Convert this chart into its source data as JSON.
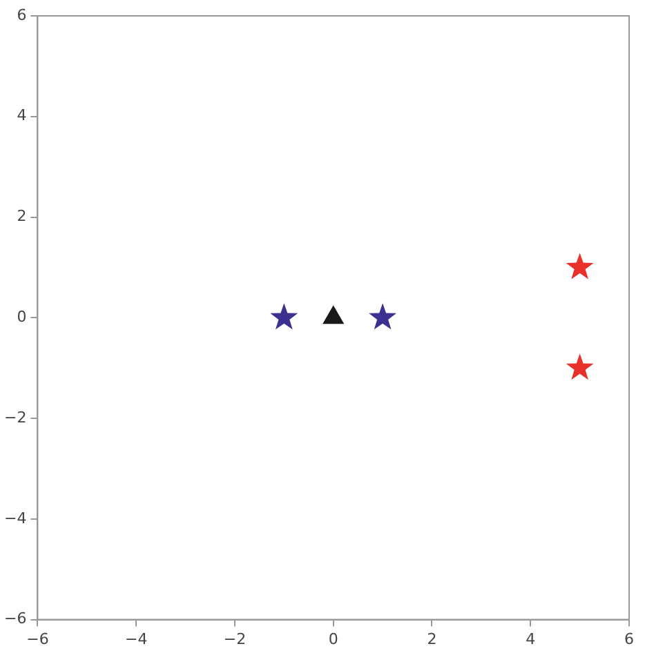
{
  "chart_data": {
    "type": "scatter",
    "xlim": [
      -6,
      6
    ],
    "ylim": [
      -6,
      6
    ],
    "xticks": [
      -6,
      -4,
      -2,
      0,
      2,
      4,
      6
    ],
    "yticks": [
      -6,
      -4,
      -2,
      0,
      2,
      4,
      6
    ],
    "grid": false,
    "legend": false,
    "series": [
      {
        "color": "#3a3191",
        "marker": "star",
        "x": [
          -1,
          1
        ],
        "values": [
          0,
          0
        ]
      },
      {
        "color": "#1a1a1a",
        "marker": "triangle",
        "x": [
          0
        ],
        "values": [
          0
        ]
      },
      {
        "color": "#e8312b",
        "marker": "star",
        "x": [
          5,
          5
        ],
        "values": [
          1,
          -1
        ]
      }
    ]
  }
}
